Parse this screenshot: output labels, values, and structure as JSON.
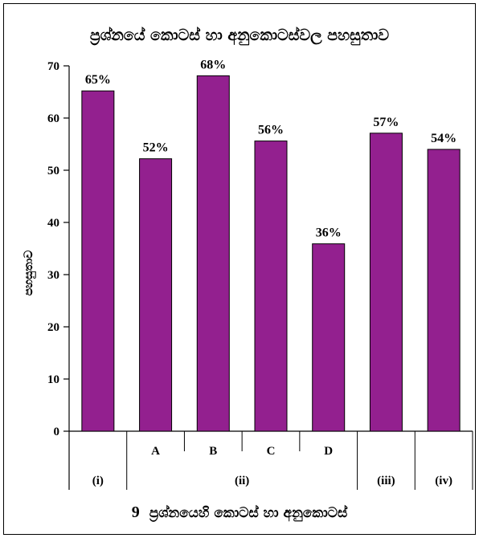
{
  "chart_data": {
    "type": "bar",
    "title": "ප්‍රශ්නයේ කොටස් හා අනුකොටස්වල පහසුතාව",
    "ylabel": "පහසුතාව",
    "xlabel_number": "9",
    "xlabel_text": "ප්‍රශ්නයෙහි කොටස් හා අනුකොටස්",
    "ylim": [
      0,
      70
    ],
    "yticks": [
      0,
      10,
      20,
      30,
      40,
      50,
      60,
      70
    ],
    "grid": false,
    "bar_color": "#93208F",
    "categories": [
      "(i)",
      "(ii) A",
      "(ii) B",
      "(ii) C",
      "(ii) D",
      "(iii)",
      "(iv)"
    ],
    "subcategories": [
      "",
      "A",
      "B",
      "C",
      "D",
      "",
      ""
    ],
    "groups": [
      {
        "label": "(i)",
        "bars": 1
      },
      {
        "label": "(ii)",
        "bars": 4
      },
      {
        "label": "(iii)",
        "bars": 1
      },
      {
        "label": "(iv)",
        "bars": 1
      }
    ],
    "values": [
      65.2,
      52.2,
      68.1,
      55.6,
      35.9,
      57.1,
      54.0
    ],
    "data_labels": [
      "65%",
      "52%",
      "68%",
      "56%",
      "36%",
      "57%",
      "54%"
    ]
  }
}
